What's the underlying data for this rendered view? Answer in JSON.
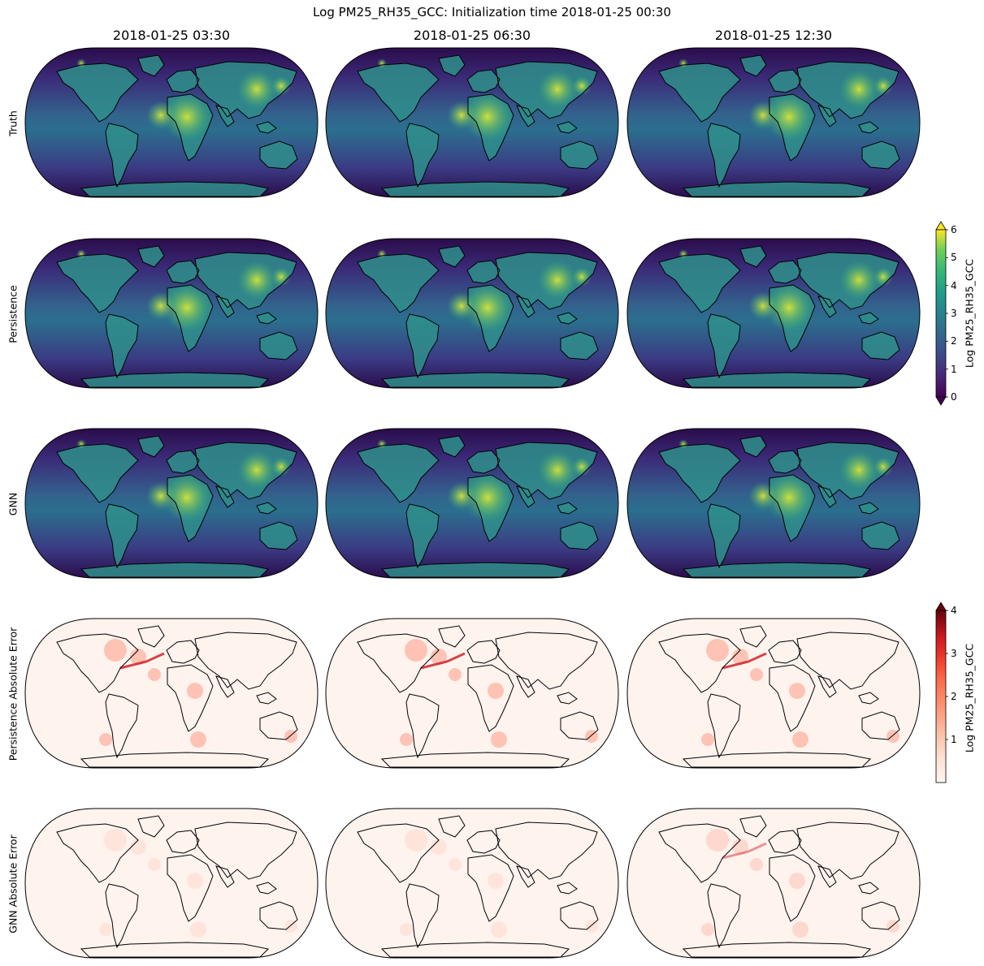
{
  "title": "Log PM25_RH35_GCC: Initialization time 2018-01-25 00:30",
  "columns": [
    "2018-01-25 03:30",
    "2018-01-25 06:30",
    "2018-01-25 12:30"
  ],
  "rows": [
    {
      "label": "Truth",
      "kind": "field"
    },
    {
      "label": "Persistence",
      "kind": "field"
    },
    {
      "label": "GNN",
      "kind": "field"
    },
    {
      "label": "Persistence Absolute Error",
      "kind": "error"
    },
    {
      "label": "GNN Absolute Error",
      "kind": "error"
    }
  ],
  "colorbars": [
    {
      "label": "Log PM25_RH35_GCC",
      "colormap": "viridis",
      "min": 0,
      "max": 6,
      "ticks": [
        "0",
        "1",
        "2",
        "3",
        "4",
        "5",
        "6"
      ],
      "extend": "both"
    },
    {
      "label": "Log PM25_RH35_GCC",
      "colormap": "Reds",
      "min": 0,
      "max": 4,
      "ticks": [
        "1",
        "2",
        "3",
        "4"
      ],
      "extend": "max"
    }
  ],
  "colors": {
    "viridis_low": "#440154",
    "viridis_mid": "#21918c",
    "viridis_high": "#fde725",
    "reds_low": "#fff5f0",
    "reds_mid": "#fb6a4a",
    "reds_high": "#67000d"
  }
}
